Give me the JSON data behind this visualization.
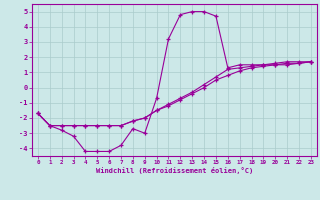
{
  "xlabel": "Windchill (Refroidissement éolien,°C)",
  "bg_color": "#cce8e8",
  "line_color": "#990099",
  "grid_color": "#aacccc",
  "hours": [
    0,
    1,
    2,
    3,
    4,
    5,
    6,
    7,
    8,
    9,
    10,
    11,
    12,
    13,
    14,
    15,
    16,
    17,
    18,
    19,
    20,
    21,
    22,
    23
  ],
  "temp": [
    -1.7,
    -2.5,
    -2.8,
    -3.2,
    -4.2,
    -4.2,
    -4.2,
    -3.8,
    -2.7,
    -3.0,
    -0.7,
    3.2,
    4.8,
    5.0,
    5.0,
    4.7,
    1.3,
    1.5,
    1.5,
    1.5,
    1.6,
    1.7,
    1.7,
    1.7
  ],
  "wc1": [
    -1.7,
    -2.5,
    -2.5,
    -2.5,
    -2.5,
    -2.5,
    -2.5,
    -2.5,
    -2.2,
    -2.0,
    -1.5,
    -1.1,
    -0.7,
    -0.3,
    0.2,
    0.7,
    1.2,
    1.3,
    1.4,
    1.5,
    1.5,
    1.6,
    1.6,
    1.7
  ],
  "wc2": [
    -1.7,
    -2.5,
    -2.5,
    -2.5,
    -2.5,
    -2.5,
    -2.5,
    -2.5,
    -2.2,
    -2.0,
    -1.5,
    -1.2,
    -0.8,
    -0.4,
    0.0,
    0.5,
    0.8,
    1.1,
    1.3,
    1.4,
    1.5,
    1.5,
    1.6,
    1.7
  ],
  "xlim": [
    -0.5,
    23.5
  ],
  "ylim": [
    -4.5,
    5.5
  ],
  "yticks": [
    -4,
    -3,
    -2,
    -1,
    0,
    1,
    2,
    3,
    4,
    5
  ],
  "xticks": [
    0,
    1,
    2,
    3,
    4,
    5,
    6,
    7,
    8,
    9,
    10,
    11,
    12,
    13,
    14,
    15,
    16,
    17,
    18,
    19,
    20,
    21,
    22,
    23
  ],
  "xtick_labels": [
    "0",
    "1",
    "2",
    "3",
    "4",
    "5",
    "6",
    "7",
    "8",
    "9",
    "10",
    "11",
    "12",
    "13",
    "14",
    "15",
    "16",
    "17",
    "18",
    "19",
    "20",
    "21",
    "22",
    "23"
  ]
}
